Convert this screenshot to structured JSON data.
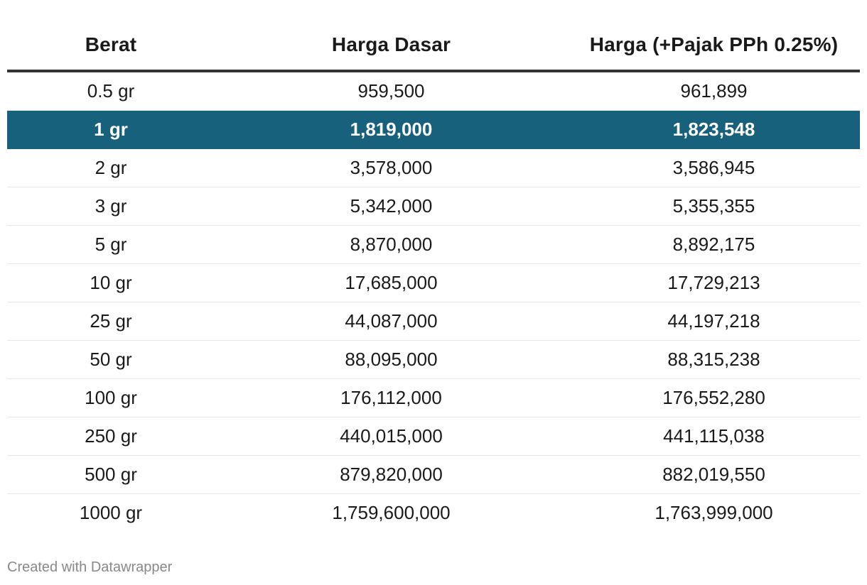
{
  "chart_data": {
    "type": "table",
    "columns": [
      "Berat",
      "Harga Dasar",
      "Harga (+Pajak PPh 0.25%)"
    ],
    "highlight_row_index": 1,
    "highlight_color": "#18617c",
    "rows": [
      [
        "0.5 gr",
        "959,500",
        "961,899"
      ],
      [
        "1 gr",
        "1,819,000",
        "1,823,548"
      ],
      [
        "2 gr",
        "3,578,000",
        "3,586,945"
      ],
      [
        "3 gr",
        "5,342,000",
        "5,355,355"
      ],
      [
        "5 gr",
        "8,870,000",
        "8,892,175"
      ],
      [
        "10 gr",
        "17,685,000",
        "17,729,213"
      ],
      [
        "25 gr",
        "44,087,000",
        "44,197,218"
      ],
      [
        "50 gr",
        "88,095,000",
        "88,315,238"
      ],
      [
        "100 gr",
        "176,112,000",
        "176,552,280"
      ],
      [
        "250 gr",
        "440,015,000",
        "441,115,038"
      ],
      [
        "500 gr",
        "879,820,000",
        "882,019,550"
      ],
      [
        "1000 gr",
        "1,759,600,000",
        "1,763,999,000"
      ]
    ]
  },
  "footer": {
    "credit": "Created with Datawrapper"
  }
}
